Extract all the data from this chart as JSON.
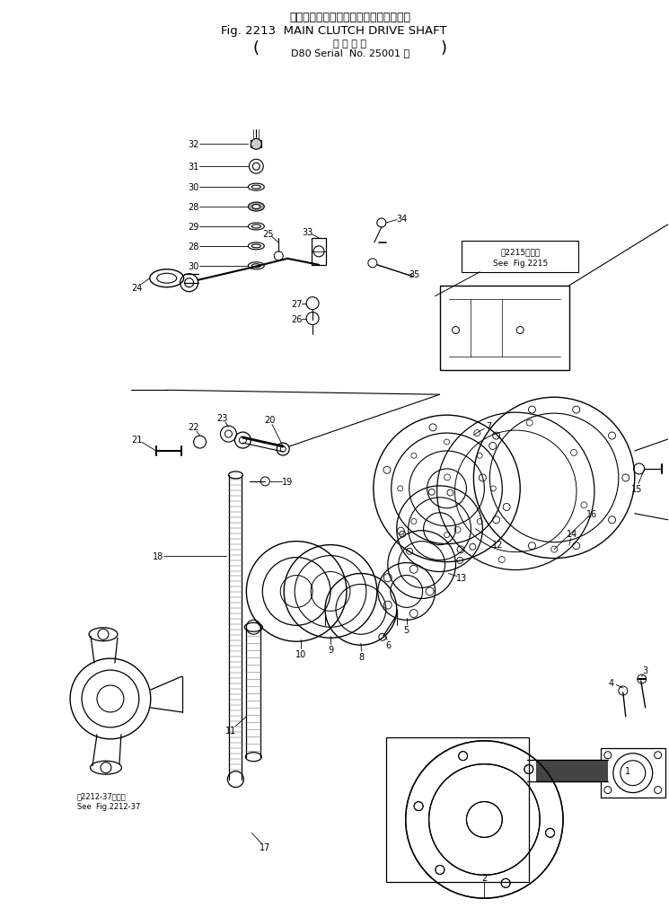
{
  "title_jp": "メイン　クラッチ　ドライブ　シャフト",
  "title_en": "Fig. 2213  MAIN CLUTCH DRIVE SHAFT",
  "subtitle_jp": "適 用 号 機",
  "subtitle_en": "D80 Serial  No. 25001 ～",
  "see2215_line1": "第2215図参照",
  "see2215_line2": "See  Fig.2215",
  "see2212_line1": "第2212-37図参照",
  "see2212_line2": "See  Fig.2212-37",
  "fig_size": [
    7.45,
    10.12
  ],
  "dpi": 100,
  "bg_color": "#ffffff"
}
